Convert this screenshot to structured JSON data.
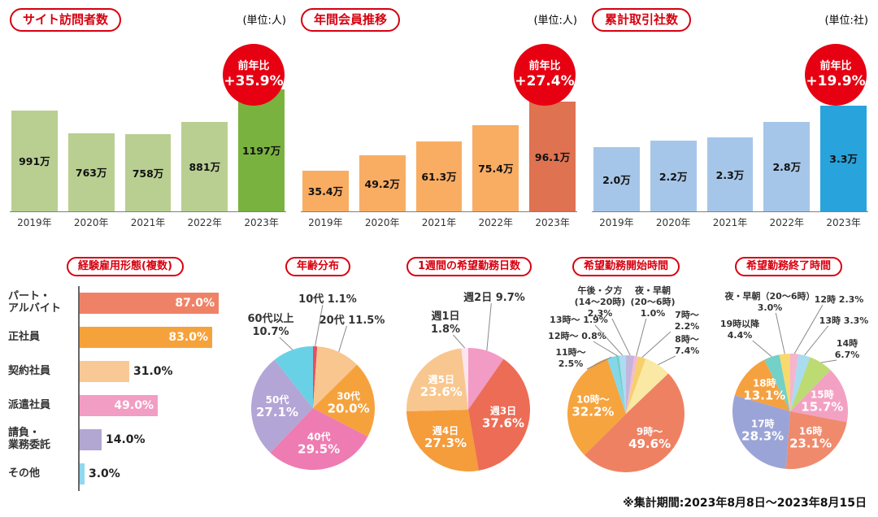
{
  "footer_note": "※集計期間:2023年8月8日〜2023年8月15日",
  "chart_data": [
    {
      "type": "bar",
      "id": "site-visitors",
      "title": "サイト訪問者数",
      "unit": "(単位:人)",
      "yoy_label": "前年比",
      "yoy_value": "+35.9%",
      "categories": [
        "2019年",
        "2020年",
        "2021年",
        "2022年",
        "2023年"
      ],
      "values": [
        991,
        763,
        758,
        881,
        1197
      ],
      "value_labels": [
        "991万",
        "763万",
        "758万",
        "881万",
        "1197万"
      ],
      "ylim": [
        0,
        1197
      ],
      "colors": {
        "base": "#b9cf92",
        "highlight": "#7ab23f"
      },
      "bar_max_h": 150
    },
    {
      "type": "bar",
      "id": "annual-members",
      "title": "年間会員推移",
      "unit": "(単位:人)",
      "yoy_label": "前年比",
      "yoy_value": "+27.4%",
      "categories": [
        "2019年",
        "2020年",
        "2021年",
        "2022年",
        "2023年"
      ],
      "values": [
        35.4,
        49.2,
        61.3,
        75.4,
        96.1
      ],
      "value_labels": [
        "35.4万",
        "49.2万",
        "61.3万",
        "75.4万",
        "96.1万"
      ],
      "ylim": [
        0,
        96.1
      ],
      "colors": {
        "base": "#f8ad63",
        "highlight": "#df7250"
      },
      "bar_max_h": 135
    },
    {
      "type": "bar",
      "id": "cumulative-companies",
      "title": "累計取引社数",
      "unit": "(単位:社)",
      "yoy_label": "前年比",
      "yoy_value": "+19.9%",
      "categories": [
        "2019年",
        "2020年",
        "2021年",
        "2022年",
        "2023年"
      ],
      "values": [
        2.0,
        2.2,
        2.3,
        2.8,
        3.3
      ],
      "value_labels": [
        "2.0万",
        "2.2万",
        "2.3万",
        "2.8万",
        "3.3万"
      ],
      "ylim": [
        0,
        3.3
      ],
      "colors": {
        "base": "#a5c6e8",
        "highlight": "#29a3dc"
      },
      "bar_max_h": 130
    },
    {
      "type": "hbar",
      "id": "employment-types",
      "title": "経験雇用形態(複数)",
      "bar_full_w": 196,
      "rows": [
        {
          "label": "パート・アルバイト",
          "label_lines": [
            "パート・",
            "アルバイト"
          ],
          "value": 87.0,
          "display": "87.0%",
          "color": "#ef8266",
          "inside": true
        },
        {
          "label": "正社員",
          "label_lines": [
            "正社員"
          ],
          "value": 83.0,
          "display": "83.0%",
          "color": "#f6a23b",
          "inside": true
        },
        {
          "label": "契約社員",
          "label_lines": [
            "契約社員"
          ],
          "value": 31.0,
          "display": "31.0%",
          "color": "#f9c995",
          "inside": false
        },
        {
          "label": "派遣社員",
          "label_lines": [
            "派遣社員"
          ],
          "value": 49.0,
          "display": "49.0%",
          "color": "#f29dc3",
          "inside": true
        },
        {
          "label": "請負・業務委託",
          "label_lines": [
            "請負・",
            "業務委託"
          ],
          "value": 14.0,
          "display": "14.0%",
          "color": "#b2a6d3",
          "inside": false
        },
        {
          "label": "その他",
          "label_lines": [
            "その他"
          ],
          "value": 3.0,
          "display": "3.0%",
          "color": "#90d8ee",
          "inside": false
        }
      ]
    },
    {
      "type": "pie",
      "id": "age-distribution",
      "title": "年齢分布",
      "out_label_size": 13,
      "slices": [
        {
          "label": "10代",
          "value": 1.1,
          "display": "1.1%",
          "color": "#e8505e",
          "inside": false,
          "label_lines": [
            "10代 1.1%"
          ],
          "label_offset": [
            18,
            -130
          ]
        },
        {
          "label": "20代",
          "value": 11.5,
          "display": "11.5%",
          "color": "#f9c68f",
          "inside": false,
          "label_lines": [
            "20代 11.5%"
          ],
          "label_offset": [
            48,
            -104
          ]
        },
        {
          "label": "30代",
          "value": 20.0,
          "display": "20.0%",
          "color": "#f6a23c",
          "inside": true,
          "label_lines": [
            "30代",
            "20.0%"
          ]
        },
        {
          "label": "40代",
          "value": 29.5,
          "display": "29.5%",
          "color": "#ee7bb1",
          "inside": true,
          "label_lines": [
            "40代",
            "29.5%"
          ]
        },
        {
          "label": "50代",
          "value": 27.1,
          "display": "27.1%",
          "color": "#b3a5d6",
          "inside": true,
          "label_lines": [
            "50代",
            "27.1%"
          ]
        },
        {
          "label": "60代以上",
          "value": 10.7,
          "display": "10.7%",
          "color": "#69d1e6",
          "inside": false,
          "label_lines": [
            "60代以上",
            "10.7%"
          ],
          "label_offset": [
            -52,
            -106
          ]
        }
      ]
    },
    {
      "type": "pie",
      "id": "weekly-work-days",
      "title": "1週間の希望勤務日数",
      "out_label_size": 13,
      "slices": [
        {
          "label": "週2日",
          "value": 9.7,
          "display": "9.7%",
          "color": "#f29bc5",
          "inside": false,
          "label_lines": [
            "週2日 9.7%"
          ],
          "label_offset": [
            32,
            -134
          ]
        },
        {
          "label": "週3日",
          "value": 37.6,
          "display": "37.6%",
          "color": "#ed6c55",
          "inside": true,
          "label_lines": [
            "週3日",
            "37.6%"
          ]
        },
        {
          "label": "週4日",
          "value": 27.3,
          "display": "27.3%",
          "color": "#f59c3b",
          "inside": true,
          "label_lines": [
            "週4日",
            "27.3%"
          ]
        },
        {
          "label": "週5日",
          "value": 23.6,
          "display": "23.6%",
          "color": "#f8c78f",
          "inside": true,
          "label_lines": [
            "週5日",
            "23.6%"
          ]
        },
        {
          "label": "週1日",
          "value": 1.8,
          "display": "1.8%",
          "color": "#fbe5ee",
          "inside": false,
          "label_lines": [
            "週1日",
            "1.8%"
          ],
          "label_offset": [
            -28,
            -111
          ]
        }
      ]
    },
    {
      "type": "pie",
      "id": "desired-start-time",
      "title": "希望勤務開始時間",
      "out_label_size": 11,
      "slices": [
        {
          "label": "午後・夕方(14〜20時)",
          "value": 2.3,
          "display": "2.3%",
          "color": "#c5b5dd",
          "inside": false,
          "label_lines": [
            "午後・夕方",
            "(14〜20時)",
            "2.3%"
          ],
          "label_offset": [
            -32,
            -148
          ]
        },
        {
          "label": "夜・早朝(20〜6時)",
          "value": 1.0,
          "display": "1.0%",
          "color": "#f5bad2",
          "inside": false,
          "label_lines": [
            "夜・早朝",
            "(20〜6時)",
            "1.0%"
          ],
          "label_offset": [
            33,
            -148
          ]
        },
        {
          "label": "7時〜",
          "value": 2.2,
          "display": "2.2%",
          "color": "#f7cf6b",
          "inside": false,
          "label_lines": [
            "7時〜",
            "2.2%"
          ],
          "label_offset": [
            75,
            -118
          ]
        },
        {
          "label": "8時〜",
          "value": 7.4,
          "display": "7.4%",
          "color": "#fae8a5",
          "inside": false,
          "label_lines": [
            "8時〜",
            "7.4%"
          ],
          "label_offset": [
            75,
            -88
          ]
        },
        {
          "label": "9時〜",
          "value": 49.6,
          "display": "49.6%",
          "color": "#ef8163",
          "inside": true,
          "label_lines": [
            "9時〜",
            "49.6%"
          ]
        },
        {
          "label": "10時〜",
          "value": 32.2,
          "display": "32.2%",
          "color": "#f6a43e",
          "inside": true,
          "label_lines": [
            "10時〜",
            "32.2%"
          ]
        },
        {
          "label": "11時〜",
          "value": 2.5,
          "display": "2.5%",
          "color": "#84d6e9",
          "inside": false,
          "label_lines": [
            "11時〜",
            "2.5%"
          ],
          "label_offset": [
            -68,
            -72
          ]
        },
        {
          "label": "12時〜",
          "value": 0.8,
          "display": "0.8%",
          "color": "#73cfc4",
          "inside": false,
          "label_lines": [
            "12時〜 0.8%"
          ],
          "label_offset": [
            -60,
            -92
          ]
        },
        {
          "label": "13時〜",
          "value": 1.9,
          "display": "1.9%",
          "color": "#aadcf2",
          "inside": false,
          "label_lines": [
            "13時〜 1.9%"
          ],
          "label_offset": [
            -58,
            -112
          ]
        }
      ]
    },
    {
      "type": "pie",
      "id": "desired-end-time",
      "title": "希望勤務終了時間",
      "out_label_size": 11,
      "slices": [
        {
          "label": "12時",
          "value": 2.3,
          "display": "2.3%",
          "color": "#f5b4cf",
          "inside": false,
          "label_lines": [
            "12時 2.3%"
          ],
          "label_offset": [
            60,
            -134
          ]
        },
        {
          "label": "13時",
          "value": 3.3,
          "display": "3.3%",
          "color": "#a9dbf1",
          "inside": false,
          "label_lines": [
            "13時 3.3%"
          ],
          "label_offset": [
            66,
            -108
          ]
        },
        {
          "label": "14時",
          "value": 6.7,
          "display": "6.7%",
          "color": "#bcdb72",
          "inside": false,
          "label_lines": [
            "14時",
            "6.7%"
          ],
          "label_offset": [
            70,
            -80
          ]
        },
        {
          "label": "15時",
          "value": 15.7,
          "display": "15.7%",
          "color": "#f3a1c2",
          "inside": true,
          "label_lines": [
            "15時",
            "15.7%"
          ]
        },
        {
          "label": "16時",
          "value": 23.1,
          "display": "23.1%",
          "color": "#ef8a6c",
          "inside": true,
          "label_lines": [
            "16時",
            "23.1%"
          ]
        },
        {
          "label": "17時",
          "value": 28.3,
          "display": "28.3%",
          "color": "#9ba4d7",
          "inside": true,
          "label_lines": [
            "17時",
            "28.3%"
          ]
        },
        {
          "label": "18時",
          "value": 13.1,
          "display": "13.1%",
          "color": "#f5a140",
          "inside": true,
          "label_lines": [
            "18時",
            "13.1%"
          ]
        },
        {
          "label": "19時以降",
          "value": 4.4,
          "display": "4.4%",
          "color": "#73d1c7",
          "inside": false,
          "label_lines": [
            "19時以降",
            "4.4%"
          ],
          "label_offset": [
            -62,
            -104
          ]
        },
        {
          "label": "夜・早朝(20〜6時)",
          "value": 3.0,
          "display": "3.0%",
          "color": "#f8d96d",
          "inside": false,
          "label_lines": [
            "夜・早朝（20〜6時）",
            "3.0%"
          ],
          "label_offset": [
            -25,
            -138
          ]
        }
      ]
    }
  ]
}
